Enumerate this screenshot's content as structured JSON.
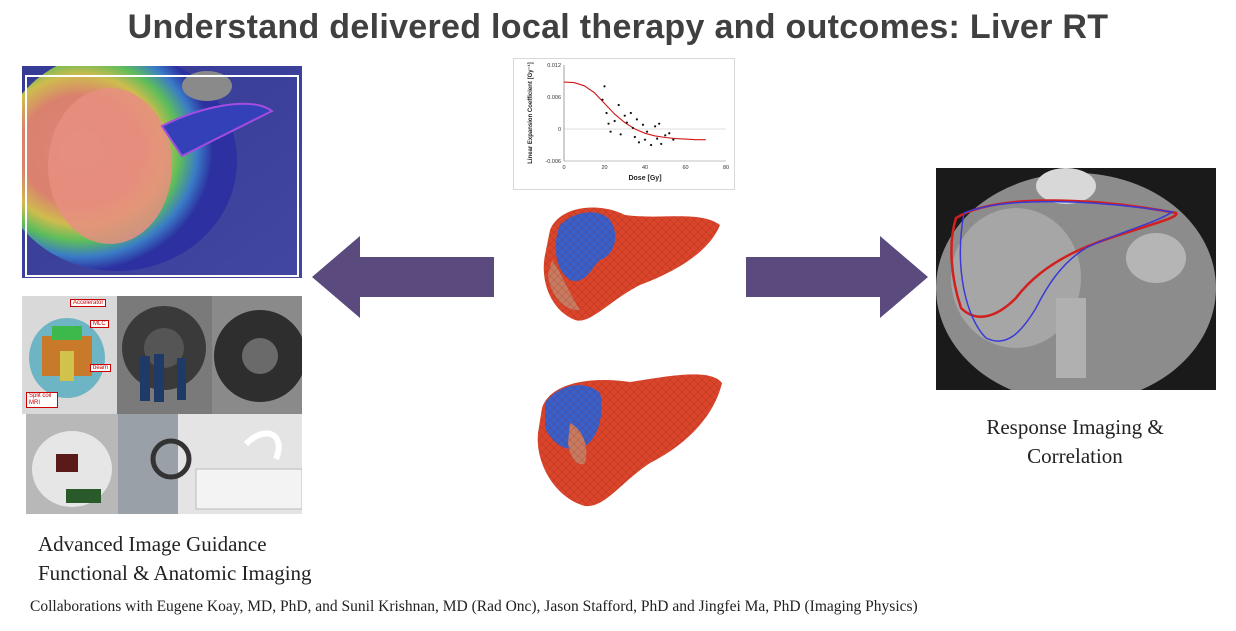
{
  "title": "Understand delivered local therapy and outcomes: Liver RT",
  "left_caption": {
    "line1": "Advanced Image Guidance",
    "line2": "Functional & Anatomic Imaging"
  },
  "right_caption": {
    "line1": "Response Imaging &",
    "line2": "Correlation"
  },
  "footer": "Collaborations with Eugene Koay, MD, PhD, and Sunil Krishnan, MD (Rad Onc), Jason Stafford, PhD and Jingfei Ma, PhD (Imaging Physics)",
  "mri_linac_labels": {
    "accelerator": "Accelerator",
    "mlc": "MLC",
    "beam": "beam",
    "split_coil": "Split coil MRI"
  },
  "colors": {
    "arrow": "#5b4a7e",
    "title": "#404040",
    "liver_red": "#d9442b",
    "liver_blue": "#3a5fc9",
    "contour_red": "#d22020",
    "contour_blue": "#3a3ad6"
  },
  "chart_data": {
    "type": "scatter",
    "xlabel": "Dose [Gy]",
    "ylabel": "Linear Expansion Coefficient [Gy⁻¹]",
    "xlim": [
      0,
      80
    ],
    "ylim": [
      -0.006,
      0.012
    ],
    "x_ticks": [
      "0",
      "20",
      "40",
      "60",
      "80"
    ],
    "y_ticks": [
      "0.012",
      "0.006",
      "0",
      "-0.006"
    ],
    "points": [
      [
        19,
        0.0055
      ],
      [
        20,
        0.008
      ],
      [
        21,
        0.003
      ],
      [
        22,
        0.001
      ],
      [
        23,
        -0.0005
      ],
      [
        25,
        0.0015
      ],
      [
        27,
        0.0045
      ],
      [
        28,
        -0.001
      ],
      [
        30,
        0.0025
      ],
      [
        31,
        0.0012
      ],
      [
        33,
        0.003
      ],
      [
        34,
        0.0002
      ],
      [
        35,
        -0.0015
      ],
      [
        36,
        0.0018
      ],
      [
        37,
        -0.0025
      ],
      [
        39,
        0.0008
      ],
      [
        40,
        -0.002
      ],
      [
        41,
        -0.0005
      ],
      [
        43,
        -0.003
      ],
      [
        45,
        0.0005
      ],
      [
        46,
        -0.0018
      ],
      [
        47,
        0.001
      ],
      [
        48,
        -0.0028
      ],
      [
        50,
        -0.0012
      ],
      [
        52,
        -0.0008
      ],
      [
        54,
        -0.002
      ]
    ],
    "fit_curve": [
      [
        0,
        0.0088
      ],
      [
        5,
        0.0087
      ],
      [
        10,
        0.0081
      ],
      [
        15,
        0.0068
      ],
      [
        20,
        0.0048
      ],
      [
        25,
        0.0028
      ],
      [
        30,
        0.0012
      ],
      [
        35,
        0.0
      ],
      [
        40,
        -0.0008
      ],
      [
        45,
        -0.0013
      ],
      [
        50,
        -0.0016
      ],
      [
        55,
        -0.0018
      ],
      [
        60,
        -0.0019
      ],
      [
        65,
        -0.002
      ],
      [
        70,
        -0.002
      ]
    ],
    "grid": false
  }
}
